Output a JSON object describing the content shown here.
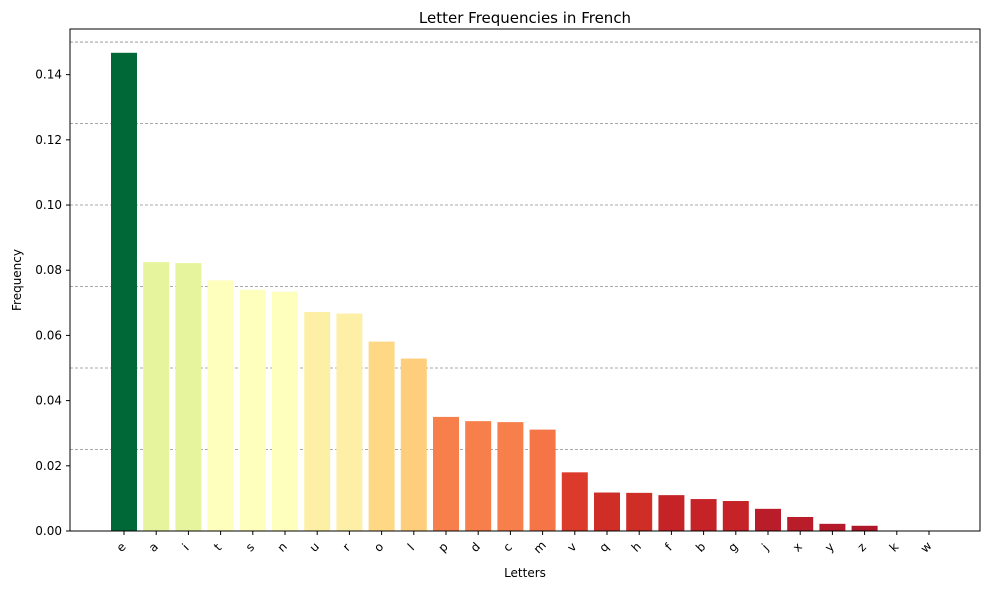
{
  "chart_data": {
    "type": "bar",
    "title": "Letter Frequencies in French",
    "xlabel": "Letters",
    "ylabel": "Frequency",
    "categories": [
      "e",
      "a",
      "i",
      "t",
      "s",
      "n",
      "u",
      "r",
      "o",
      "l",
      "p",
      "d",
      "c",
      "m",
      "v",
      "q",
      "h",
      "f",
      "b",
      "g",
      "j",
      "x",
      "y",
      "z",
      "k",
      "w"
    ],
    "values": [
      0.1467,
      0.0825,
      0.0822,
      0.0769,
      0.074,
      0.0734,
      0.0672,
      0.0667,
      0.0581,
      0.0529,
      0.035,
      0.0337,
      0.0334,
      0.0311,
      0.018,
      0.0118,
      0.0117,
      0.011,
      0.0098,
      0.0092,
      0.0068,
      0.0043,
      0.0022,
      0.0016,
      0.0001,
      0.0001
    ],
    "colors": [
      "#006837",
      "#e6f59d",
      "#e6f59d",
      "#fefebd",
      "#fefebd",
      "#fefebd",
      "#fdf0a6",
      "#fdf0a6",
      "#fed884",
      "#fece7c",
      "#f67f4b",
      "#f67f4b",
      "#f67f4b",
      "#f57547",
      "#dc3b2c",
      "#cf2e27",
      "#cf2e27",
      "#c52328",
      "#c52328",
      "#c52328",
      "#b91d2a",
      "#b91d2a",
      "#b41a2a",
      "#ae1629",
      "#a50026",
      "#a50026"
    ],
    "yticks": [
      "0.00",
      "0.02",
      "0.04",
      "0.06",
      "0.08",
      "0.10",
      "0.12",
      "0.14"
    ],
    "ylim": [
      0,
      0.154
    ],
    "hlines": [
      0.025,
      0.05,
      0.075,
      0.1,
      0.125,
      0.15
    ],
    "grid": "horizontal dashed gray lines"
  }
}
